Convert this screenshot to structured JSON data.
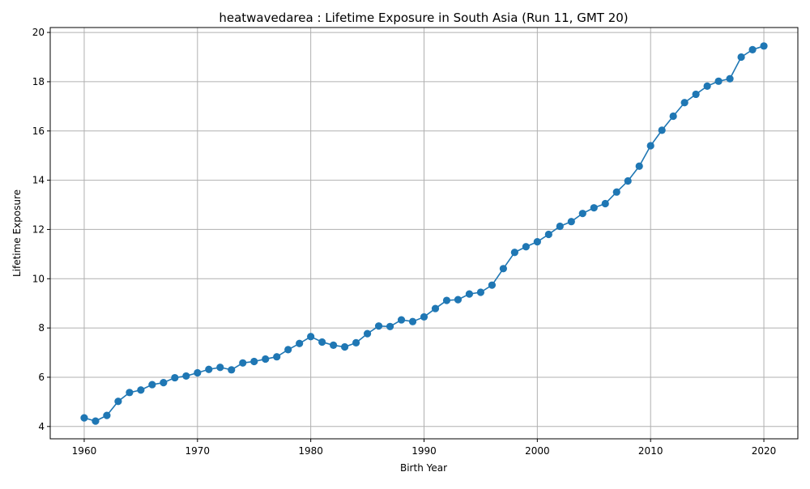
{
  "chart_data": {
    "type": "line",
    "title": "heatwavedarea : Lifetime Exposure in South Asia (Run 11, GMT 20)",
    "xlabel": "Birth Year",
    "ylabel": "Lifetime Exposure",
    "xlim": [
      1957,
      2023
    ],
    "ylim": [
      3.5,
      20.2
    ],
    "xticks": [
      1960,
      1970,
      1980,
      1990,
      2000,
      2010,
      2020
    ],
    "yticks": [
      4,
      6,
      8,
      10,
      12,
      14,
      16,
      18,
      20
    ],
    "grid": true,
    "color": "#1f77b4",
    "marker": "circle",
    "x": [
      1960,
      1961,
      1962,
      1963,
      1964,
      1965,
      1966,
      1967,
      1968,
      1969,
      1970,
      1971,
      1972,
      1973,
      1974,
      1975,
      1976,
      1977,
      1978,
      1979,
      1980,
      1981,
      1982,
      1983,
      1984,
      1985,
      1986,
      1987,
      1988,
      1989,
      1990,
      1991,
      1992,
      1993,
      1994,
      1995,
      1996,
      1997,
      1998,
      1999,
      2000,
      2001,
      2002,
      2003,
      2004,
      2005,
      2006,
      2007,
      2008,
      2009,
      2010,
      2011,
      2012,
      2013,
      2014,
      2015,
      2016,
      2017,
      2018,
      2019,
      2020
    ],
    "y": [
      4.35,
      4.22,
      4.45,
      5.02,
      5.38,
      5.48,
      5.7,
      5.78,
      5.98,
      6.05,
      6.18,
      6.32,
      6.4,
      6.3,
      6.58,
      6.64,
      6.74,
      6.83,
      7.12,
      7.37,
      7.65,
      7.43,
      7.3,
      7.23,
      7.4,
      7.77,
      8.08,
      8.06,
      8.33,
      8.26,
      8.45,
      8.79,
      9.12,
      9.15,
      9.38,
      9.45,
      9.74,
      10.41,
      11.07,
      11.3,
      11.5,
      11.8,
      12.13,
      12.32,
      12.65,
      12.88,
      13.05,
      13.52,
      13.97,
      14.57,
      15.4,
      16.03,
      16.6,
      17.15,
      17.49,
      17.82,
      18.02,
      18.12,
      19.0,
      19.3,
      19.45
    ]
  }
}
